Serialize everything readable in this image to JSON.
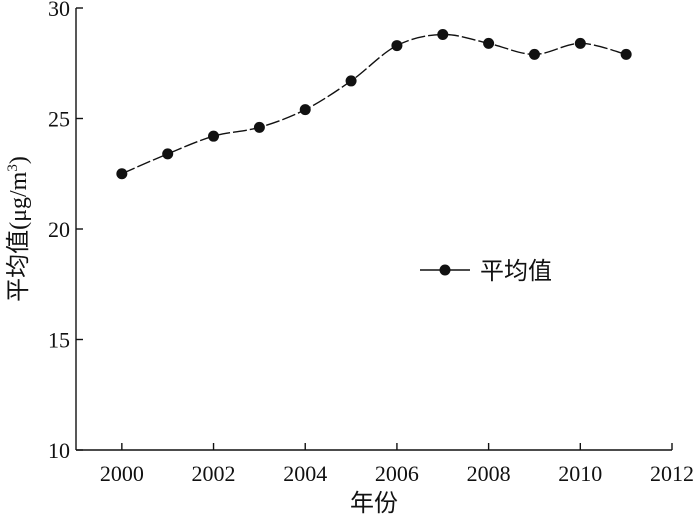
{
  "chart_data": {
    "type": "line",
    "title": "",
    "xlabel": "年份",
    "ylabel": "平均值(μg/m³)",
    "ylabel_main": "平均值(μg/m",
    "ylabel_sup": "3",
    "ylabel_close": ")",
    "xlim": [
      1999,
      2012
    ],
    "ylim": [
      10,
      30
    ],
    "xticks": [
      2000,
      2002,
      2004,
      2006,
      2008,
      2010,
      2012
    ],
    "yticks": [
      10,
      15,
      20,
      25,
      30
    ],
    "grid": false,
    "legend_position": "center-right",
    "line_style": "dashed",
    "series": [
      {
        "name": "平均值",
        "x": [
          2000,
          2001,
          2002,
          2003,
          2004,
          2005,
          2006,
          2007,
          2008,
          2009,
          2010,
          2011
        ],
        "values": [
          22.5,
          23.4,
          24.2,
          24.6,
          25.4,
          26.7,
          28.3,
          28.8,
          28.4,
          27.9,
          28.4,
          27.9
        ]
      }
    ],
    "colors": {
      "line": "#111111",
      "marker": "#111111",
      "axis": "#111111"
    }
  }
}
